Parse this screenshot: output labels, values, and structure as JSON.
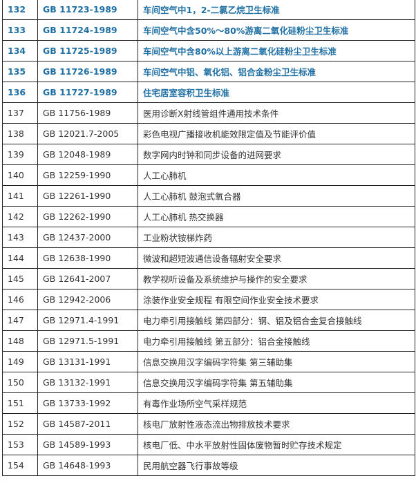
{
  "accent_color": "#1f6fa3",
  "rows": [
    {
      "no": "132",
      "code": "GB 11723-1989",
      "title": "车间空气中1，2-二氯乙烷卫生标准",
      "highlighted": true
    },
    {
      "no": "133",
      "code": "GB 11724-1989",
      "title": "车间空气中含50%～80%游离二氧化硅粉尘卫生标准",
      "highlighted": true
    },
    {
      "no": "134",
      "code": "GB 11725-1989",
      "title": "车间空气中含80%以上游离二氧化硅粉尘卫生标准",
      "highlighted": true
    },
    {
      "no": "135",
      "code": "GB 11726-1989",
      "title": "车间空气中铝、氧化铝、铝合金粉尘卫生标准",
      "highlighted": true
    },
    {
      "no": "136",
      "code": "GB 11727-1989",
      "title": "住宅居室容积卫生标准",
      "highlighted": true
    },
    {
      "no": "137",
      "code": "GB 11756-1989",
      "title": "医用诊断X射线管组件通用技术条件",
      "highlighted": false
    },
    {
      "no": "138",
      "code": "GB 12021.7-2005",
      "title": "彩色电视广播接收机能效限定值及节能评价值",
      "highlighted": false
    },
    {
      "no": "139",
      "code": "GB 12048-1989",
      "title": "数字网内时钟和同步设备的进网要求",
      "highlighted": false
    },
    {
      "no": "140",
      "code": "GB 12259-1990",
      "title": "人工心肺机",
      "highlighted": false
    },
    {
      "no": "141",
      "code": "GB 12261-1990",
      "title": "人工心肺机  鼓泡式氧合器",
      "highlighted": false
    },
    {
      "no": "142",
      "code": "GB 12262-1990",
      "title": "人工心肺机  热交换器",
      "highlighted": false
    },
    {
      "no": "143",
      "code": "GB 12437-2000",
      "title": "工业粉状铵梯炸药",
      "highlighted": false
    },
    {
      "no": "144",
      "code": "GB 12638-1990",
      "title": "微波和超短波通信设备辐射安全要求",
      "highlighted": false
    },
    {
      "no": "145",
      "code": "GB 12641-2007",
      "title": "教学视听设备及系统维护与操作的安全要求",
      "highlighted": false
    },
    {
      "no": "146",
      "code": "GB 12942-2006",
      "title": "涂装作业安全规程  有限空间作业安全技术要求",
      "highlighted": false
    },
    {
      "no": "147",
      "code": "GB 12971.4-1991",
      "title": "电力牵引用接触线  第四部分：钢、铝及铝合金复合接触线",
      "highlighted": false
    },
    {
      "no": "148",
      "code": "GB 12971.5-1991",
      "title": "电力牵引用接触线  第五部分：铝合金接触线",
      "highlighted": false
    },
    {
      "no": "149",
      "code": "GB 13131-1991",
      "title": "信息交换用汉字编码字符集  第三辅助集",
      "highlighted": false
    },
    {
      "no": "150",
      "code": "GB 13132-1991",
      "title": "信息交换用汉字编码字符集  第五辅助集",
      "highlighted": false
    },
    {
      "no": "151",
      "code": "GB 13733-1992",
      "title": "有毒作业场所空气采样规范",
      "highlighted": false
    },
    {
      "no": "152",
      "code": "GB 14587-2011",
      "title": "核电厂放射性液态流出物排放技术要求",
      "highlighted": false
    },
    {
      "no": "153",
      "code": "GB 14589-1993",
      "title": "核电厂低、中水平放射性固体废物暂时贮存技术规定",
      "highlighted": false
    },
    {
      "no": "154",
      "code": "GB 14648-1993",
      "title": "民用航空器飞行事故等级",
      "highlighted": false
    }
  ]
}
